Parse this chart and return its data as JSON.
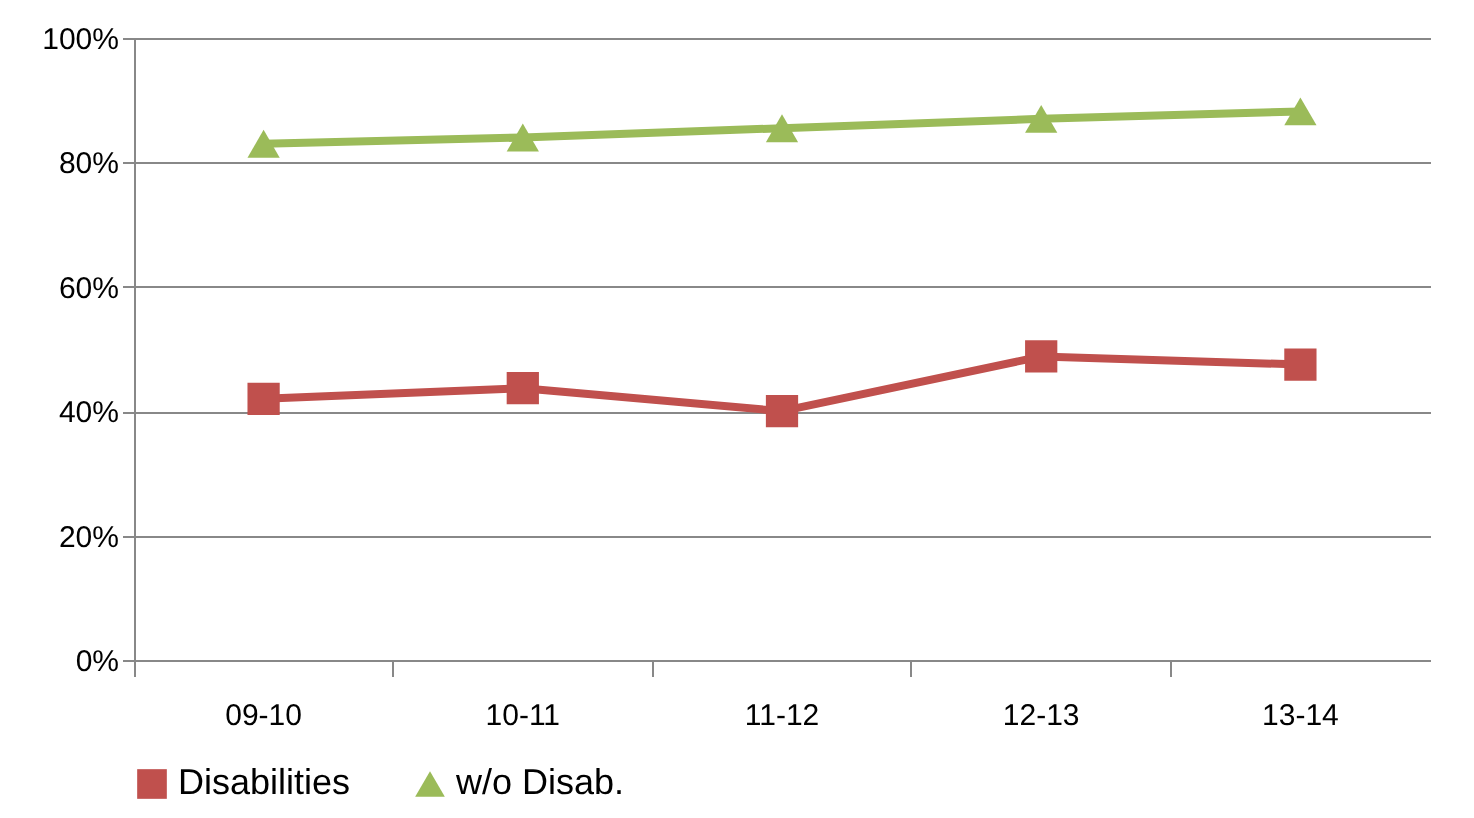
{
  "chart_data": {
    "type": "line",
    "categories": [
      "09-10",
      "10-11",
      "11-12",
      "12-13",
      "13-14"
    ],
    "series": [
      {
        "name": "Disabilities",
        "color": "#c0504d",
        "marker": "square",
        "values": [
          42,
          43.7,
          40,
          48.8,
          47.5
        ]
      },
      {
        "name": "w/o Disab.",
        "color": "#9bbb59",
        "marker": "triangle",
        "values": [
          83,
          84,
          85.5,
          87,
          88.2
        ]
      }
    ],
    "ylim": [
      0,
      100
    ],
    "yticks": [
      {
        "value": 0,
        "label": "0%"
      },
      {
        "value": 20,
        "label": "20%"
      },
      {
        "value": 40,
        "label": "40%"
      },
      {
        "value": 60,
        "label": "60%"
      },
      {
        "value": 80,
        "label": "80%"
      },
      {
        "value": 100,
        "label": "100%"
      }
    ],
    "grid": "y",
    "legend": "bottom",
    "line_style": "solid"
  }
}
